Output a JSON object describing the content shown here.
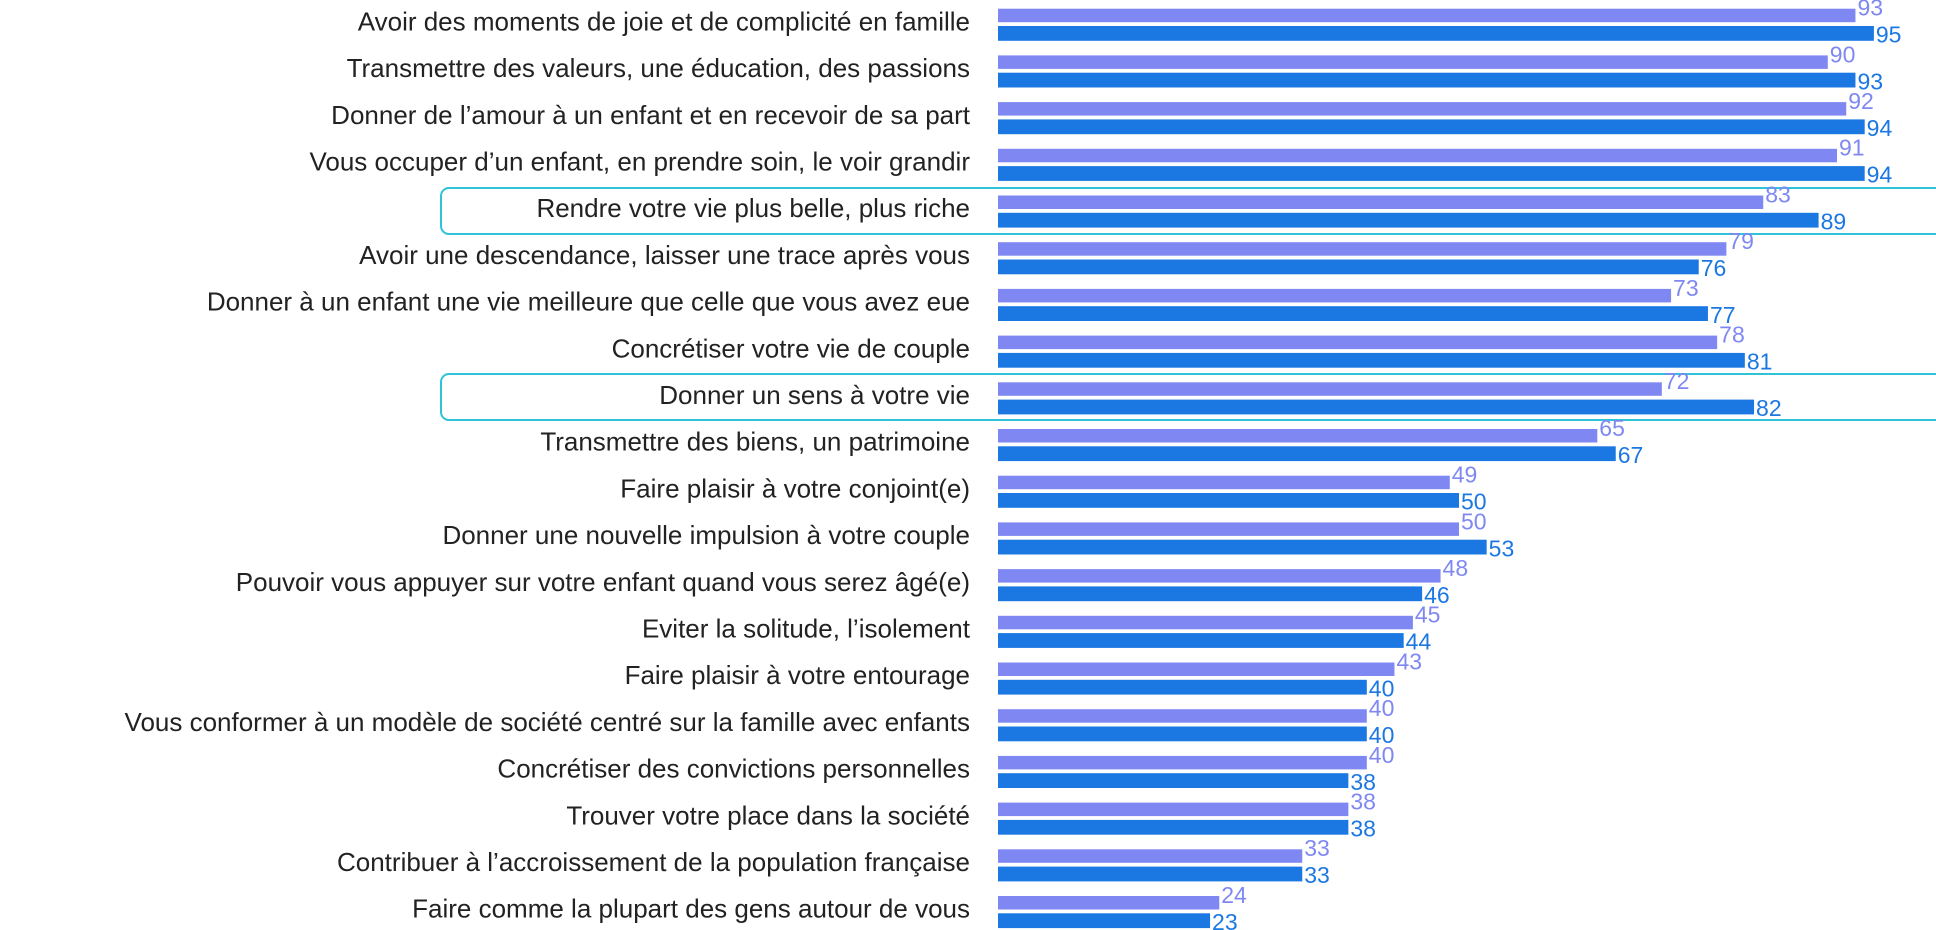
{
  "chart_data": {
    "type": "bar",
    "orientation": "horizontal",
    "categories": [
      "Avoir des moments de joie et de complicité en famille",
      "Transmettre des valeurs, une éducation, des passions",
      "Donner de l’amour à un enfant et en recevoir de sa part",
      "Vous occuper d’un enfant, en prendre soin, le voir grandir",
      "Rendre votre vie plus belle, plus riche",
      "Avoir une descendance, laisser une trace après vous",
      "Donner à un enfant une vie meilleure que celle que vous avez eue",
      "Concrétiser votre vie de couple",
      "Donner un sens à votre vie",
      "Transmettre des biens, un patrimoine",
      "Faire plaisir à votre conjoint(e)",
      "Donner une nouvelle impulsion à votre couple",
      "Pouvoir vous appuyer sur votre enfant quand vous serez âgé(e)",
      "Eviter la solitude, l’isolement",
      "Faire plaisir à votre entourage",
      "Vous conformer à un modèle de société centré sur la famille avec enfants",
      "Concrétiser des convictions personnelles",
      "Trouver votre place dans la société",
      "Contribuer à l’accroissement de la population française",
      "Faire comme la plupart des gens autour de vous"
    ],
    "series": [
      {
        "color": "#7f88f2",
        "values": [
          93,
          90,
          92,
          91,
          83,
          79,
          73,
          78,
          72,
          65,
          49,
          50,
          48,
          45,
          43,
          40,
          40,
          38,
          33,
          24
        ]
      },
      {
        "color": "#1b78e2",
        "values": [
          95,
          93,
          94,
          94,
          89,
          76,
          77,
          81,
          82,
          67,
          50,
          53,
          46,
          44,
          40,
          40,
          38,
          38,
          33,
          23
        ]
      }
    ],
    "xlim": [
      0,
      100
    ]
  }
}
